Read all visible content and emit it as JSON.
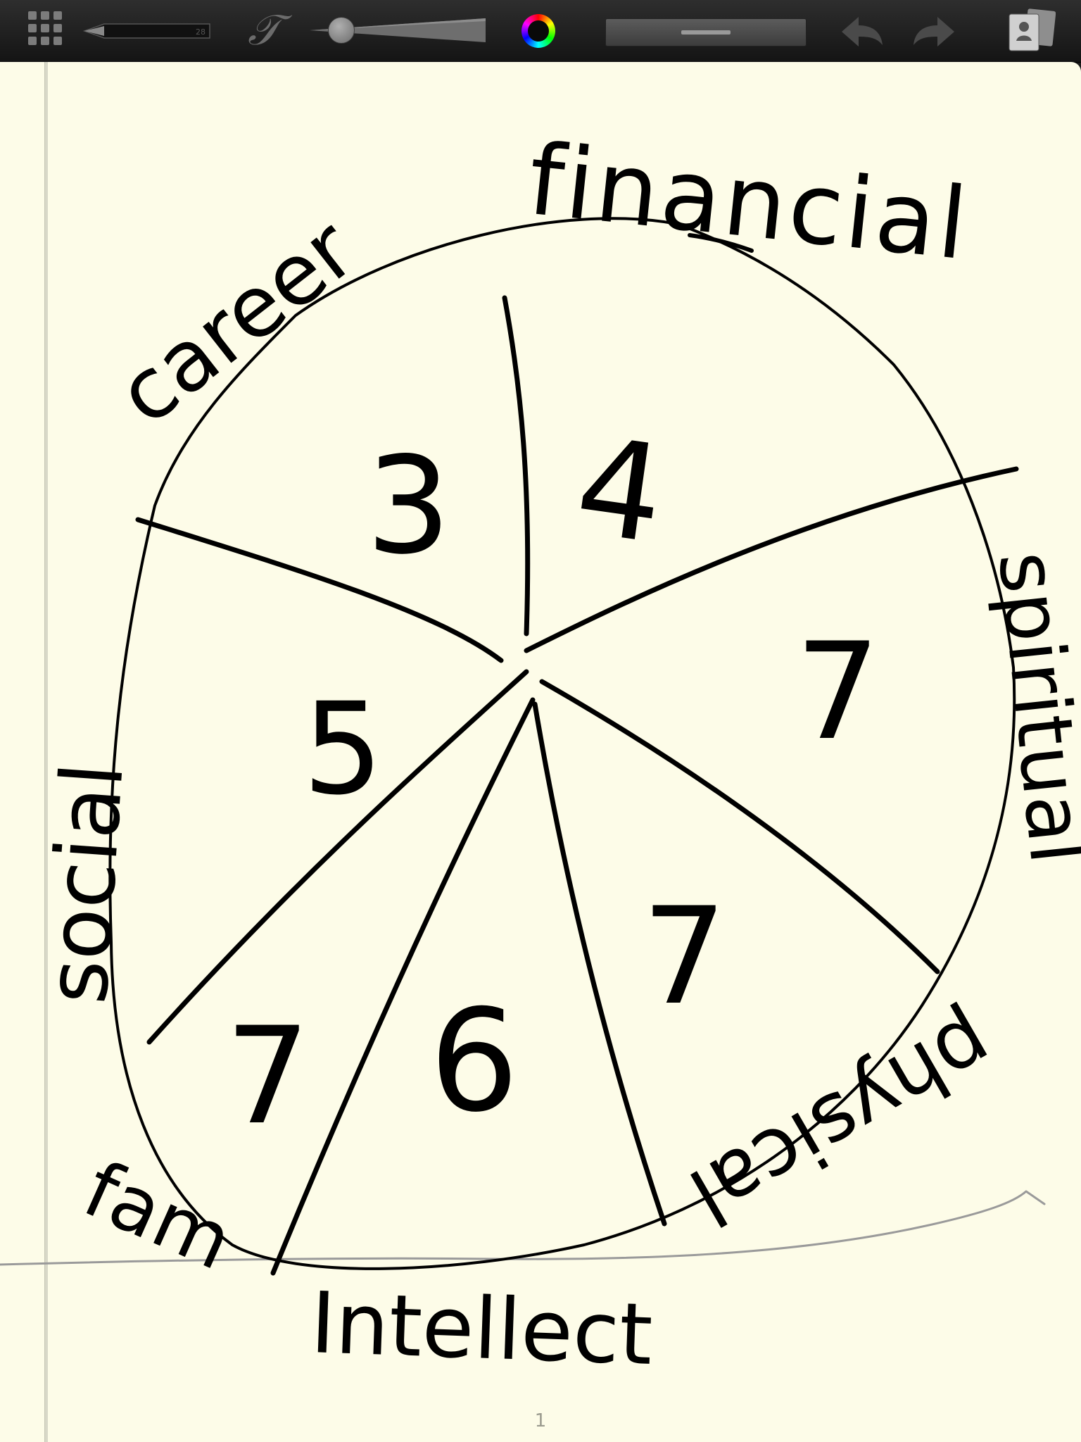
{
  "toolbar": {
    "pen_size": "28",
    "font_glyph": "𝒯",
    "brush_size_level": 0.12,
    "colors": {
      "toolbar_bg": "#1c1c1c",
      "paper": "#fdfce8",
      "ink": "#000000",
      "baseline_stroke": "#9a9a9a"
    },
    "icons": [
      "grid-icon",
      "pen-icon",
      "font-icon",
      "size-slider-knob",
      "color-wheel-icon",
      "line-style-icon",
      "undo-icon",
      "redo-icon",
      "pages-icon"
    ]
  },
  "drawing": {
    "labels": {
      "financial": "financial",
      "career": "career",
      "spiritual": "spiritual",
      "social": "social",
      "fam": "fam",
      "intellect": "Intellect",
      "physical": "physical"
    },
    "scores": {
      "career": "3",
      "financial": "4",
      "spiritual": "7",
      "social": "5",
      "physical": "7",
      "intellect": "6",
      "family": "7"
    }
  },
  "page": {
    "number": "1"
  }
}
